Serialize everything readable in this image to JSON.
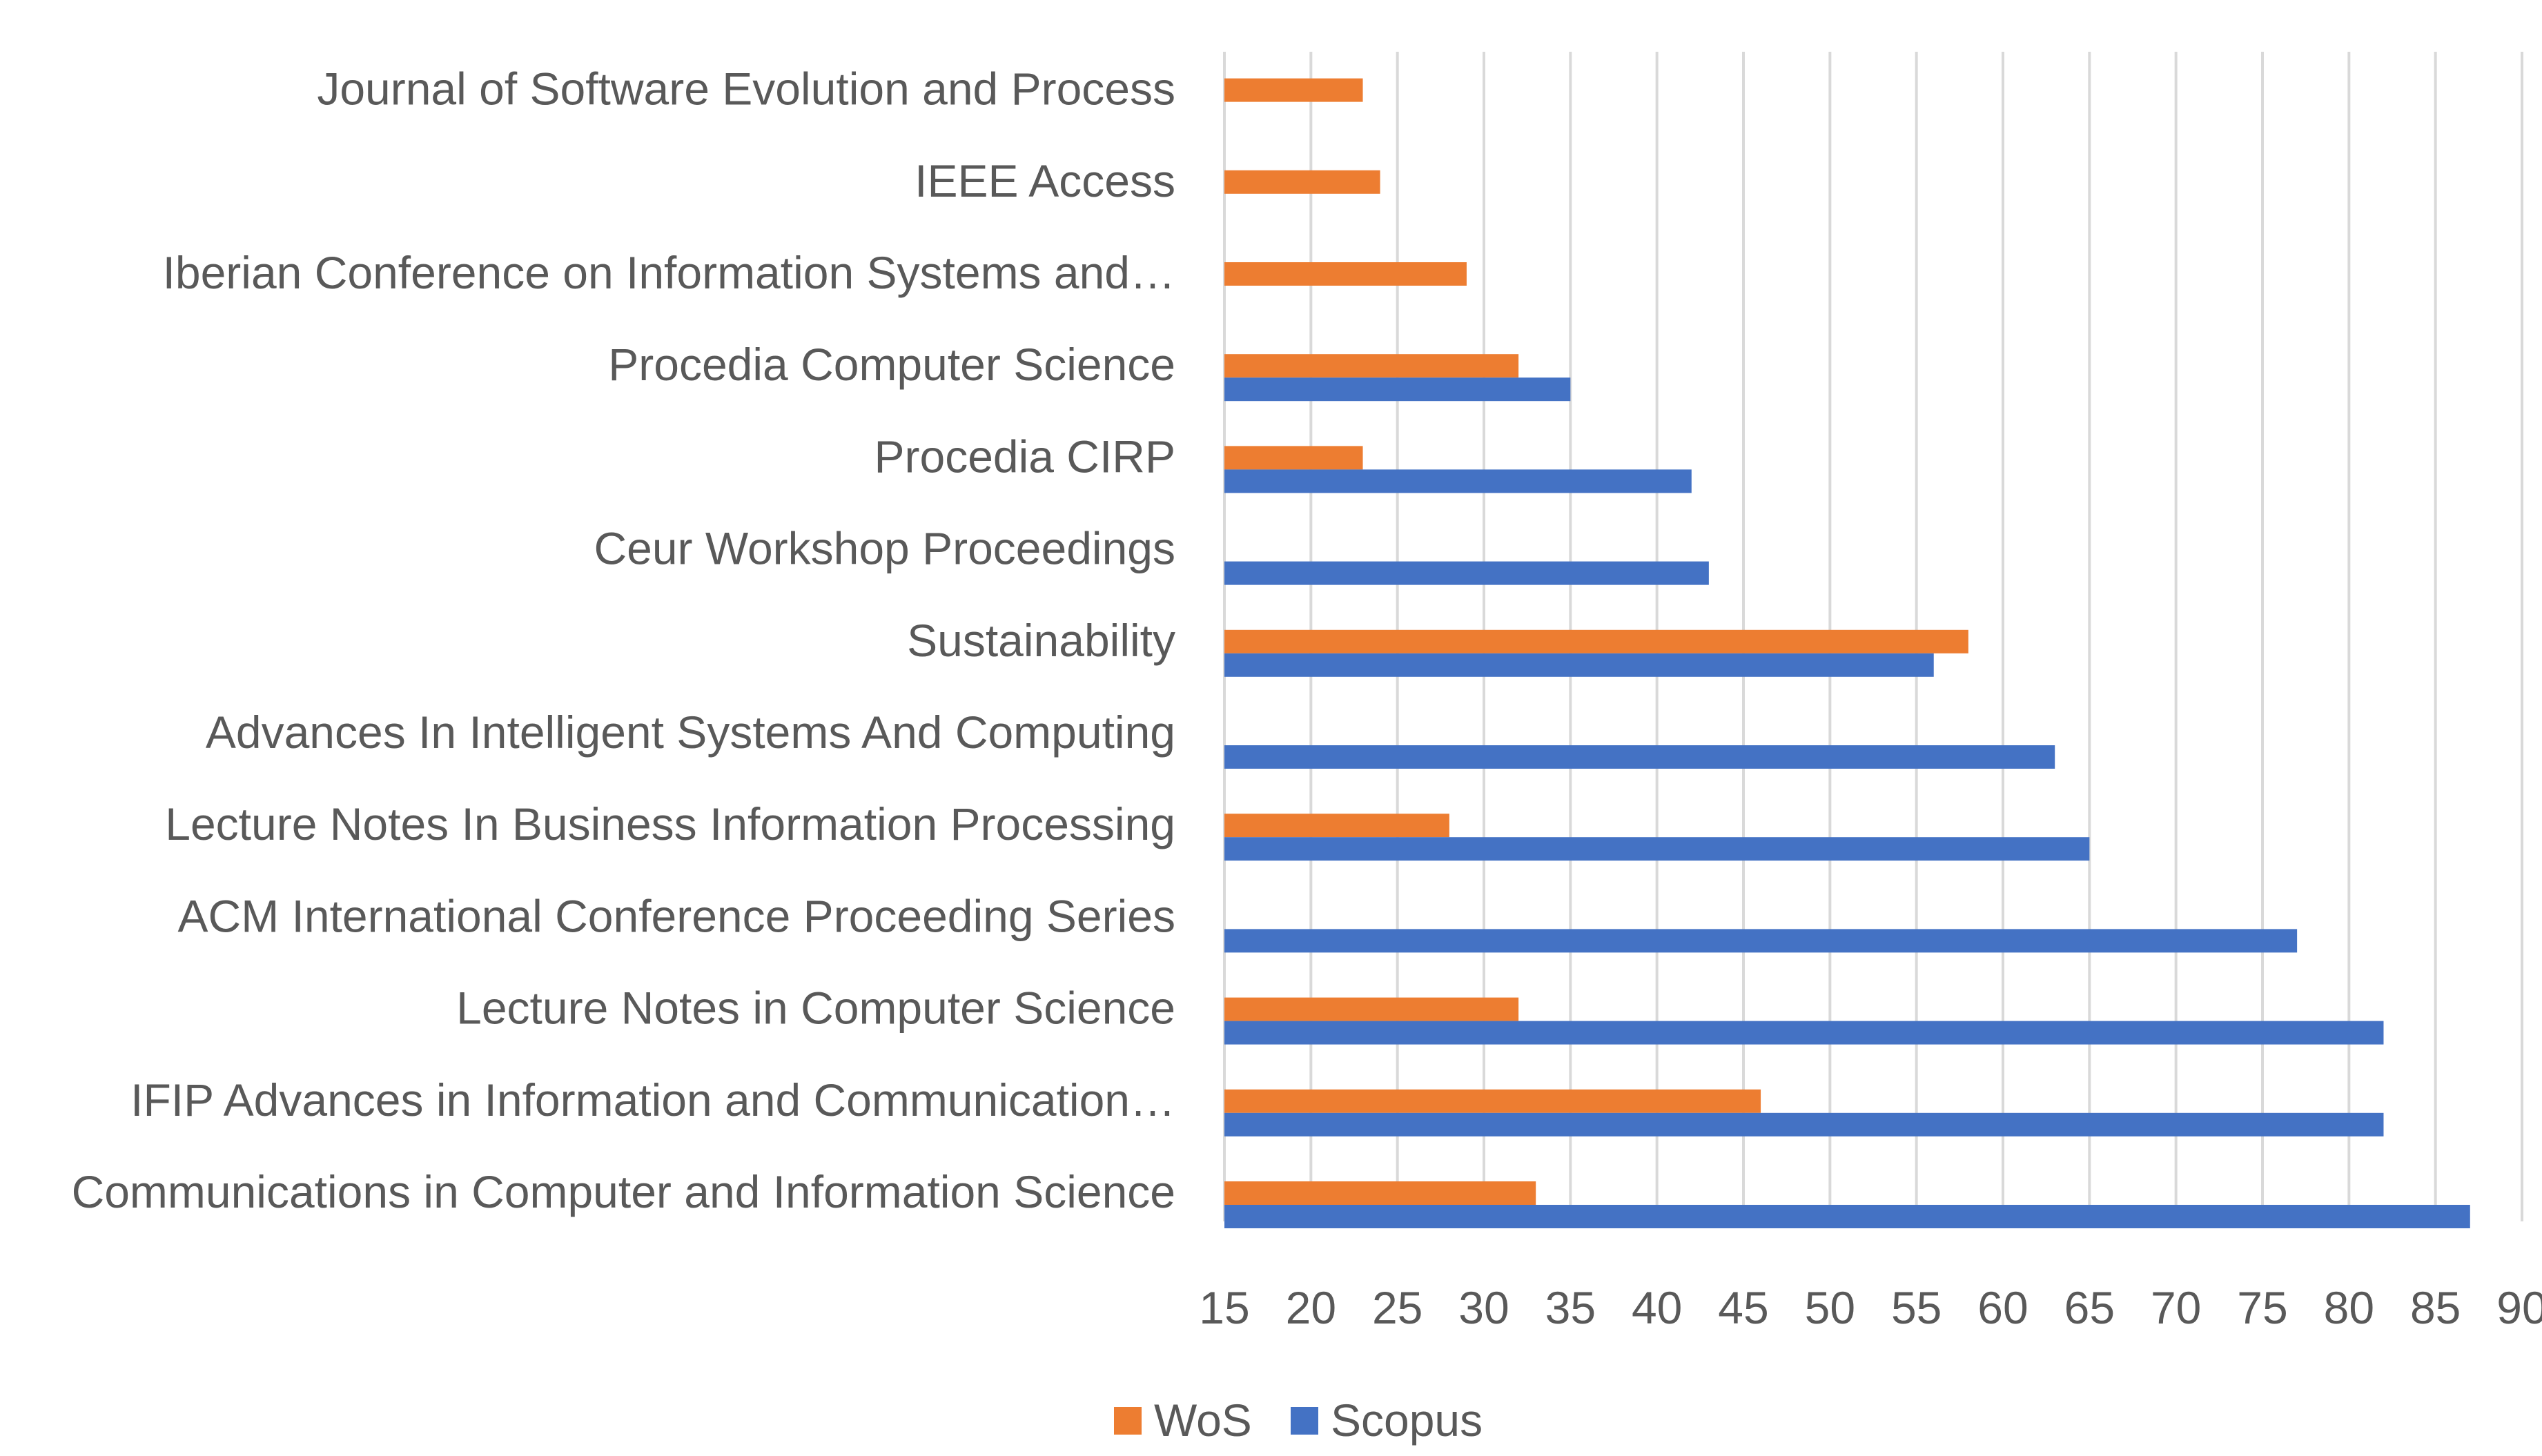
{
  "chart_data": {
    "type": "bar",
    "orientation": "horizontal",
    "title": "",
    "xlabel": "",
    "ylabel": "",
    "xlim": [
      15,
      90
    ],
    "x_ticks": [
      15,
      20,
      25,
      30,
      35,
      40,
      45,
      50,
      55,
      60,
      65,
      70,
      75,
      80,
      85,
      90
    ],
    "grid": true,
    "legend_position": "bottom",
    "categories": [
      "Journal of Software Evolution and Process",
      "IEEE Access",
      "Iberian Conference on Information Systems and…",
      "Procedia Computer Science",
      "Procedia CIRP",
      "Ceur Workshop Proceedings",
      "Sustainability",
      "Advances In Intelligent Systems And Computing",
      "Lecture Notes In Business Information Processing",
      "ACM International Conference Proceeding Series",
      "Lecture Notes in Computer Science",
      "IFIP Advances in Information and Communication…",
      "Communications in Computer and Information Science"
    ],
    "series": [
      {
        "name": "WoS",
        "color": "#ed7d31",
        "values": [
          23,
          24,
          29,
          32,
          23,
          null,
          58,
          null,
          28,
          null,
          32,
          46,
          33
        ]
      },
      {
        "name": "Scopus",
        "color": "#4472c4",
        "values": [
          null,
          null,
          null,
          35,
          42,
          43,
          56,
          63,
          65,
          77,
          82,
          82,
          87
        ]
      }
    ]
  }
}
